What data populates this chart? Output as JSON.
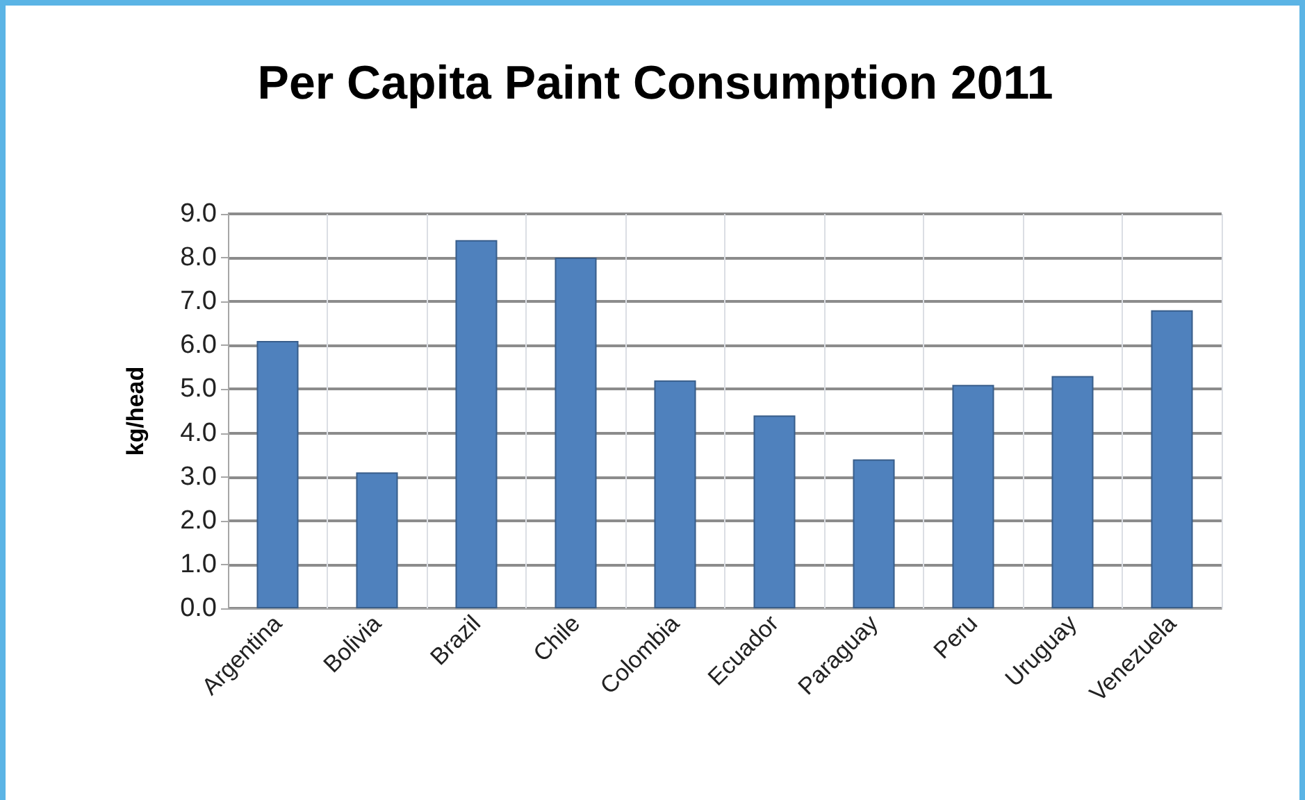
{
  "chart_data": {
    "type": "bar",
    "title": "Per Capita Paint Consumption 2011",
    "ylabel": "kg/head",
    "categories": [
      "Argentina",
      "Bolivia",
      "Brazil",
      "Chile",
      "Colombia",
      "Ecuador",
      "Paraguay",
      "Peru",
      "Uruguay",
      "Venezuela"
    ],
    "values": [
      6.1,
      3.1,
      8.4,
      8.0,
      5.2,
      4.4,
      3.4,
      5.1,
      5.3,
      6.8
    ],
    "color": "#4f81bd",
    "ylim": [
      0,
      9
    ],
    "yticks": [
      {
        "value": 0,
        "label": "0.0"
      },
      {
        "value": 1,
        "label": "1.0"
      },
      {
        "value": 2,
        "label": "2.0"
      },
      {
        "value": 3,
        "label": "3.0"
      },
      {
        "value": 4,
        "label": "4.0"
      },
      {
        "value": 5,
        "label": "5.0"
      },
      {
        "value": 6,
        "label": "6.0"
      },
      {
        "value": 7,
        "label": "7.0"
      },
      {
        "value": 8,
        "label": "8.0"
      },
      {
        "value": 9,
        "label": "9.0"
      }
    ],
    "grid": true
  }
}
